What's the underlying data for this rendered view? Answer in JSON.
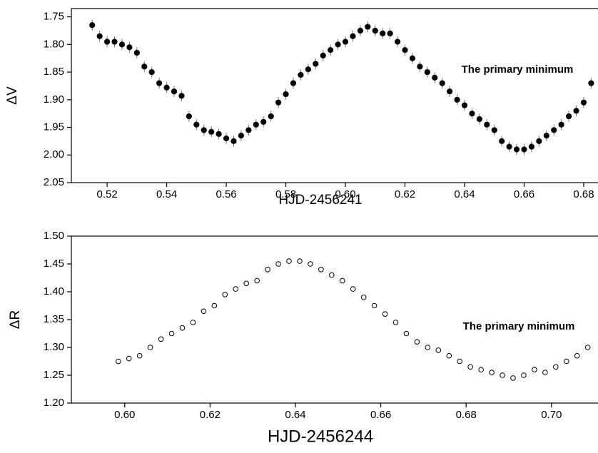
{
  "chart_data": [
    {
      "type": "scatter",
      "markers": "filled",
      "color": "#000000",
      "error": 0.01,
      "xlabel": "HJD-2456241",
      "ylabel": "ΔV",
      "annotation": "The primary minimum",
      "xlim": [
        0.508,
        0.6848
      ],
      "ylim": [
        2.05,
        1.735
      ],
      "xticks": [
        0.52,
        0.54,
        0.56,
        0.58,
        {
          "value": 0.6,
          "label": "0.60"
        },
        0.62,
        0.64,
        0.66,
        0.68
      ],
      "yticks": [
        1.75,
        {
          "value": 1.8,
          "label": "1.80"
        },
        1.85,
        {
          "value": 1.9,
          "label": "1.90"
        },
        1.95,
        {
          "value": 2.0,
          "label": "2.00"
        },
        2.05
      ],
      "x": [
        0.515,
        0.5175,
        0.52,
        0.5225,
        0.525,
        0.5275,
        0.53,
        0.5325,
        0.535,
        0.5375,
        0.54,
        0.5425,
        0.545,
        0.5475,
        0.55,
        0.5525,
        0.555,
        0.5575,
        0.56,
        0.5625,
        0.565,
        0.5675,
        0.57,
        0.5725,
        0.575,
        0.5775,
        0.58,
        0.5825,
        0.585,
        0.5875,
        0.59,
        0.5925,
        0.595,
        0.5975,
        0.6,
        0.6025,
        0.605,
        0.6075,
        0.61,
        0.6125,
        0.615,
        0.6175,
        0.62,
        0.6225,
        0.625,
        0.6275,
        0.63,
        0.6325,
        0.635,
        0.6375,
        0.64,
        0.6425,
        0.645,
        0.6475,
        0.65,
        0.6525,
        0.655,
        0.6575,
        0.66,
        0.6625,
        0.665,
        0.6675,
        0.67,
        0.6725,
        0.675,
        0.6775,
        0.68,
        0.6825
      ],
      "values": [
        1.765,
        1.785,
        1.795,
        1.795,
        1.8,
        1.805,
        1.815,
        1.84,
        1.85,
        1.87,
        1.878,
        1.885,
        1.893,
        1.93,
        1.945,
        1.955,
        1.958,
        1.962,
        1.97,
        1.975,
        1.965,
        1.955,
        1.945,
        1.94,
        1.93,
        1.905,
        1.89,
        1.87,
        1.855,
        1.845,
        1.835,
        1.82,
        1.81,
        1.8,
        1.795,
        1.785,
        1.775,
        1.768,
        1.775,
        1.78,
        1.78,
        1.795,
        1.81,
        1.825,
        1.84,
        1.85,
        1.86,
        1.87,
        1.885,
        1.9,
        1.91,
        1.925,
        1.935,
        1.945,
        1.955,
        1.975,
        1.985,
        1.99,
        1.99,
        1.985,
        1.975,
        1.965,
        1.955,
        1.945,
        1.93,
        1.92,
        1.905,
        1.87
      ]
    },
    {
      "type": "scatter",
      "markers": "open",
      "color": "#000000",
      "xlabel": "HJD-2456244",
      "ylabel": "ΔR",
      "annotation": "The primary minimum",
      "xlim": [
        0.5875,
        0.7109
      ],
      "ylim": [
        1.2,
        1.5
      ],
      "xticks": [
        {
          "value": 0.6,
          "label": "0.60"
        },
        0.62,
        0.64,
        0.66,
        0.68,
        {
          "value": 0.7,
          "label": "0.70"
        }
      ],
      "yticks": [
        {
          "value": 1.2,
          "label": "1.20"
        },
        1.25,
        {
          "value": 1.3,
          "label": "1.30"
        },
        1.35,
        {
          "value": 1.4,
          "label": "1.40"
        },
        1.45,
        {
          "value": 1.5,
          "label": "1.50"
        }
      ],
      "x": [
        0.5985,
        0.601,
        0.6035,
        0.606,
        0.6085,
        0.611,
        0.6135,
        0.616,
        0.6185,
        0.621,
        0.6235,
        0.626,
        0.6285,
        0.631,
        0.6335,
        0.636,
        0.6385,
        0.641,
        0.6435,
        0.646,
        0.6485,
        0.651,
        0.6535,
        0.656,
        0.6585,
        0.661,
        0.6635,
        0.666,
        0.6685,
        0.671,
        0.6735,
        0.676,
        0.6785,
        0.681,
        0.6835,
        0.686,
        0.6885,
        0.691,
        0.6935,
        0.696,
        0.6985,
        0.701,
        0.7035,
        0.706,
        0.7085
      ],
      "values": [
        1.275,
        1.28,
        1.285,
        1.3,
        1.315,
        1.325,
        1.335,
        1.345,
        1.365,
        1.375,
        1.395,
        1.405,
        1.415,
        1.42,
        1.44,
        1.45,
        1.455,
        1.455,
        1.45,
        1.44,
        1.43,
        1.42,
        1.405,
        1.39,
        1.375,
        1.36,
        1.345,
        1.325,
        1.31,
        1.3,
        1.295,
        1.285,
        1.275,
        1.265,
        1.26,
        1.255,
        1.25,
        1.245,
        1.25,
        1.26,
        1.255,
        1.265,
        1.275,
        1.285,
        1.3
      ]
    }
  ]
}
